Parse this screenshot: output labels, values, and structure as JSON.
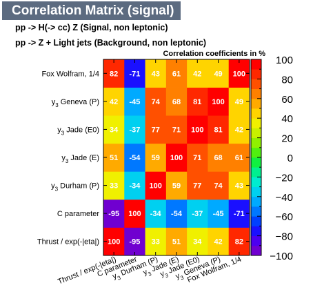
{
  "header": {
    "title": "Correlation Matrix (signal)",
    "signal_line": "pp -> H(-> cc) Z (Signal, non leptonic)",
    "background_line": "pp -> Z + Light  jets (Background, non leptonic)"
  },
  "chart_data": {
    "type": "heatmap",
    "title": "Correlation coefficients in %",
    "variables": [
      {
        "label": "Thrust / exp(-|eta|)"
      },
      {
        "label": "C parameter"
      },
      {
        "label": "Durham (P)",
        "prefix": "y",
        "sub": "3"
      },
      {
        "label": "Jade (E)",
        "prefix": "y",
        "sub": "3"
      },
      {
        "label": "Jade (E0)",
        "prefix": "y",
        "sub": "3"
      },
      {
        "label": "Geneva (P)",
        "prefix": "y",
        "sub": "3"
      },
      {
        "label": "Fox Wolfram, 1/4"
      }
    ],
    "matrix": [
      [
        100,
        -95,
        33,
        51,
        34,
        42,
        82
      ],
      [
        -95,
        100,
        -34,
        -54,
        -37,
        -45,
        -71
      ],
      [
        33,
        -34,
        100,
        59,
        77,
        74,
        43
      ],
      [
        51,
        -54,
        59,
        100,
        71,
        68,
        61
      ],
      [
        34,
        -37,
        77,
        71,
        100,
        81,
        42
      ],
      [
        42,
        -45,
        74,
        68,
        81,
        100,
        49
      ],
      [
        82,
        -71,
        43,
        61,
        42,
        49,
        100
      ]
    ],
    "zlim": [
      -100,
      100
    ],
    "colorbar_ticks": [
      "100",
      "80",
      "60",
      "40",
      "20",
      "0",
      "−20",
      "−40",
      "−60",
      "−80",
      "−100"
    ]
  }
}
